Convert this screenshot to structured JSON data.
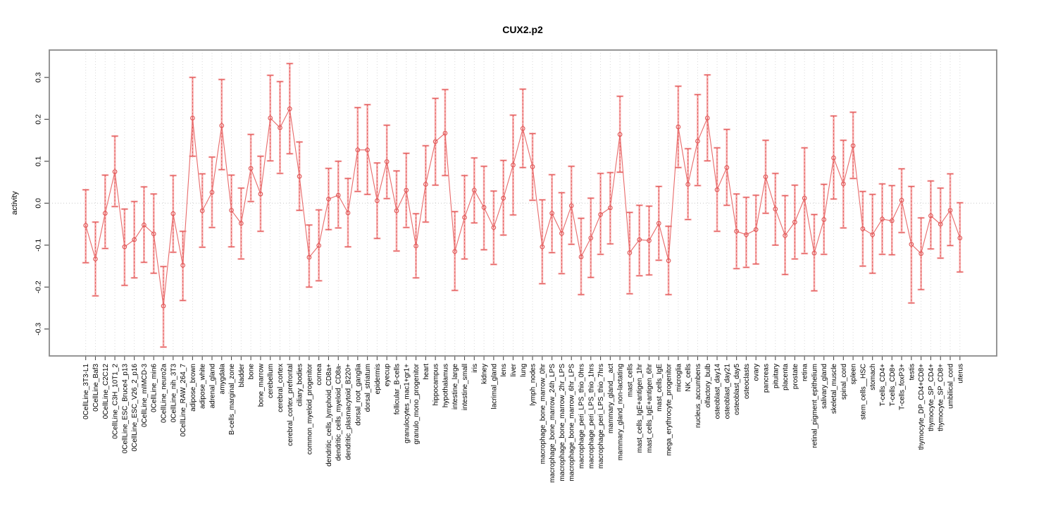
{
  "chart_data": {
    "type": "line",
    "title": "CUX2.p2",
    "xlabel": "",
    "ylabel": "activity",
    "series_name": "activity",
    "legend": "none",
    "grid": "dotted vertical line per category; dotted horizontal line at 0",
    "ylim": [
      -0.365,
      0.365
    ],
    "yticks": [
      0.3,
      0.2,
      0.1,
      0.0,
      -0.1,
      -0.2,
      -0.3
    ],
    "ytick_labels": [
      "0.3",
      "0.2",
      "0.1",
      "0.0",
      "-0.1",
      "-0.2",
      "-0.3"
    ],
    "point_style": "open-circle",
    "error_bars": true,
    "colors": {
      "point": "#e05555",
      "line": "#e86a6a",
      "error_bar_inner": "#f6abab",
      "error_bar_outer": "#e05555",
      "gridline": "#d9d9d9",
      "zero_line": "#c8c8c8",
      "axis_box": "#8a8a8a",
      "tick": "#4d4d4d",
      "text": "#000000"
    },
    "categories": [
      "0CellLine_3T3-L1",
      "0CellLine_Baf3",
      "0CellLine_C2C12",
      "0CellLine_C3H_10T1_2",
      "0CellLine_ESC_Bruce4_p13",
      "0CellLine_ESC_V26_2_p16",
      "0CellLine_mIMCD-3",
      "0CellLine_min6",
      "0CellLine_neuro2a",
      "0CellLine_nih_3T3",
      "0CellLine_RAW_264_7",
      "adipose_brown",
      "adipose_white",
      "adrenal_gland",
      "amygdala",
      "B-cells_marginal_zone",
      "bladder",
      "bone",
      "bone_marrow",
      "cerebellum",
      "cerebral_cortex",
      "cerebral_cortex_prefrontal",
      "ciliary_bodies",
      "common_myeloid_progenitor",
      "cornea",
      "dendritic_cells_lymphoid_CD8a+",
      "dendritic_cells_myeloid_CD8a-",
      "dendritic_plasmacytoid_B220+",
      "dorsal_root_ganglia",
      "dorsal_striatum",
      "epidermis",
      "eyecup",
      "follicular_B-cells",
      "granulocytes_mac1+gr1+",
      "granulo_mono_progenitor",
      "heart",
      "hippocampus",
      "hypothalamus",
      "intestine_large",
      "intestine_small",
      "iris",
      "kidney",
      "lacrimal_gland",
      "lens",
      "liver",
      "lung",
      "lymph_nodes",
      "macrophage_bone_marrow_0hr",
      "macrophage_bone_marrow_24h_LPS",
      "macrophage_bone_marrow_2hr_LPS",
      "macrophage_bone_marrow_6hr_LPS",
      "macrophage_peri_LPS_thio_0hrs",
      "macrophage_peri_LPS_thio_1hrs",
      "macrophage_peri_LPS_thio_7hrs",
      "mammary_gland__act",
      "mammary_gland_non-lactating",
      "mast_cells",
      "mast_cells_IgE+antigen_1hr",
      "mast_cells_IgE+antigen_6hr",
      "mast_cells_IgE",
      "mega_erythrocyte_progenitor",
      "microglia",
      "NK_cells",
      "nucleus_accumbens",
      "olfactory_bulb",
      "osteoblast_day14",
      "osteoblast_day21",
      "osteoblast_day5",
      "osteoclasts",
      "ovary",
      "pancreas",
      "pituitary",
      "placenta",
      "prostate",
      "retina",
      "retinal_pigment_epithelium",
      "salivary_gland",
      "skeletal_muscle",
      "spinal_cord",
      "spleen",
      "stem_cells__HSC",
      "stomach",
      "T-cells_CD4+",
      "T-cells_CD8+",
      "T-cells_foxP3+",
      "testis",
      "thymocyte_DP_CD4+CD8+",
      "thymocyte_SP_CD4+",
      "thymocyte_SP_CD8+",
      "umbilical_cord",
      "uterus"
    ],
    "values": [
      -0.053,
      -0.133,
      -0.024,
      0.075,
      -0.104,
      -0.087,
      -0.052,
      -0.073,
      -0.245,
      -0.025,
      -0.148,
      0.203,
      -0.018,
      0.026,
      0.185,
      -0.017,
      -0.048,
      0.083,
      0.022,
      0.203,
      0.18,
      0.225,
      0.064,
      -0.129,
      -0.101,
      0.01,
      0.019,
      -0.023,
      0.127,
      0.127,
      0.006,
      0.099,
      -0.018,
      0.031,
      -0.102,
      0.045,
      0.147,
      0.167,
      -0.115,
      -0.034,
      0.031,
      -0.01,
      -0.058,
      0.012,
      0.091,
      0.178,
      0.087,
      -0.104,
      -0.024,
      -0.072,
      -0.006,
      -0.128,
      -0.083,
      -0.027,
      -0.011,
      0.164,
      -0.118,
      -0.087,
      -0.089,
      -0.048,
      -0.137,
      0.182,
      0.045,
      0.148,
      0.203,
      0.032,
      0.085,
      -0.067,
      -0.075,
      -0.063,
      0.063,
      -0.014,
      -0.077,
      -0.045,
      0.012,
      -0.119,
      -0.039,
      0.108,
      0.046,
      0.137,
      -0.061,
      -0.075,
      -0.038,
      -0.042,
      0.007,
      -0.098,
      -0.12,
      -0.03,
      -0.05,
      -0.017,
      -0.083
    ],
    "err_hi": [
      0.032,
      -0.045,
      0.067,
      0.16,
      -0.014,
      0.004,
      0.039,
      0.022,
      -0.151,
      0.066,
      -0.067,
      0.3,
      0.07,
      0.11,
      0.295,
      0.067,
      0.036,
      0.164,
      0.112,
      0.305,
      0.29,
      0.333,
      0.146,
      -0.052,
      -0.016,
      0.083,
      0.1,
      0.059,
      0.228,
      0.235,
      0.096,
      0.186,
      0.077,
      0.119,
      -0.025,
      0.137,
      0.25,
      0.271,
      -0.02,
      0.066,
      0.108,
      0.088,
      0.029,
      0.102,
      0.21,
      0.272,
      0.166,
      0.008,
      0.068,
      0.025,
      0.088,
      -0.036,
      0.012,
      0.071,
      0.073,
      0.255,
      -0.022,
      -0.005,
      -0.007,
      0.04,
      -0.055,
      0.279,
      0.13,
      0.259,
      0.306,
      0.132,
      0.176,
      0.022,
      0.014,
      0.019,
      0.15,
      0.071,
      0.018,
      0.043,
      0.132,
      -0.027,
      0.045,
      0.208,
      0.15,
      0.217,
      0.028,
      0.021,
      0.046,
      0.042,
      0.082,
      0.04,
      -0.035,
      0.053,
      0.036,
      0.07,
      0.001
    ],
    "err_lo": [
      -0.142,
      -0.221,
      -0.108,
      -0.008,
      -0.196,
      -0.178,
      -0.141,
      -0.167,
      -0.343,
      -0.117,
      -0.232,
      0.112,
      -0.105,
      -0.058,
      0.08,
      -0.104,
      -0.133,
      0.004,
      -0.067,
      0.101,
      0.071,
      0.118,
      -0.017,
      -0.2,
      -0.185,
      -0.063,
      -0.059,
      -0.104,
      0.028,
      0.021,
      -0.084,
      0.011,
      -0.114,
      -0.058,
      -0.178,
      -0.045,
      0.043,
      0.066,
      -0.208,
      -0.133,
      -0.047,
      -0.111,
      -0.146,
      -0.076,
      -0.028,
      0.085,
      0.007,
      -0.192,
      -0.118,
      -0.168,
      -0.098,
      -0.218,
      -0.177,
      -0.122,
      -0.097,
      0.074,
      -0.216,
      -0.173,
      -0.171,
      -0.136,
      -0.218,
      0.085,
      -0.039,
      0.042,
      0.101,
      -0.067,
      -0.005,
      -0.156,
      -0.153,
      -0.145,
      -0.024,
      -0.1,
      -0.17,
      -0.133,
      -0.12,
      -0.209,
      -0.122,
      0.01,
      -0.059,
      0.059,
      -0.15,
      -0.167,
      -0.122,
      -0.123,
      -0.07,
      -0.238,
      -0.206,
      -0.109,
      -0.131,
      -0.101,
      -0.164
    ]
  }
}
